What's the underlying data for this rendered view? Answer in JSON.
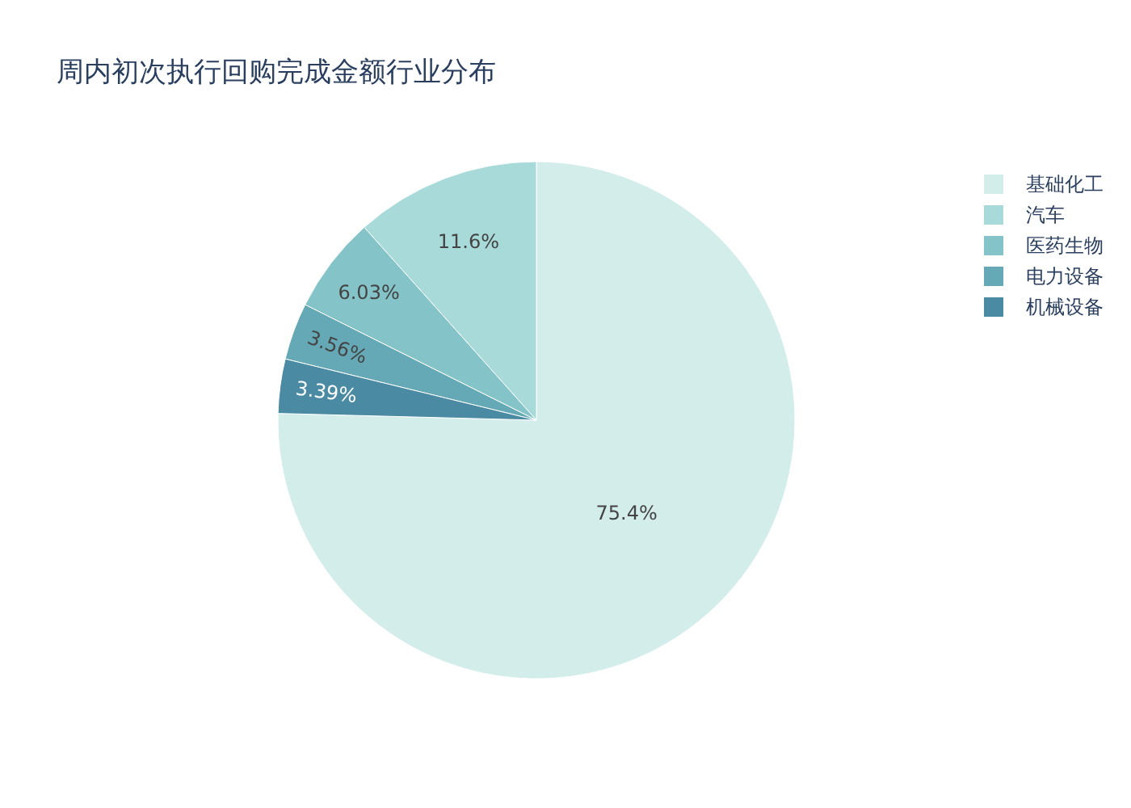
{
  "chart_data": {
    "type": "pie",
    "title": "周内初次执行回购完成金额行业分布",
    "categories": [
      "基础化工",
      "汽车",
      "医药生物",
      "电力设备",
      "机械设备"
    ],
    "values": [
      75.4,
      11.6,
      6.03,
      3.56,
      3.39
    ],
    "colors": [
      "#d2edea",
      "#a8dad9",
      "#84c3c7",
      "#64a9b5",
      "#4a8ba3"
    ],
    "value_labels": [
      "75.4%",
      "11.6%",
      "6.03%",
      "3.56%",
      "3.39%"
    ],
    "legend": "top right"
  }
}
